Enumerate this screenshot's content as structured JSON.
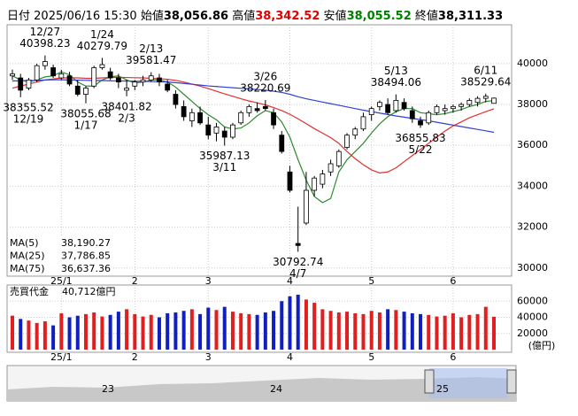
{
  "header": {
    "date_label": "日付",
    "datetime": "2025/06/16 15:30",
    "open_label": "始値",
    "open": "38,056.86",
    "high_label": "高値",
    "high": "38,342.52",
    "low_label": "安値",
    "low": "38,055.52",
    "close_label": "終値",
    "close": "38,311.33"
  },
  "chart_data": {
    "type": "candlestick",
    "categories": [
      null,
      null,
      null,
      null,
      null,
      null,
      "25/1",
      null,
      null,
      null,
      null,
      null,
      null,
      null,
      null,
      "2",
      null,
      null,
      null,
      null,
      null,
      null,
      null,
      null,
      "3",
      null,
      null,
      null,
      null,
      null,
      null,
      null,
      null,
      null,
      "4",
      null,
      null,
      null,
      null,
      null,
      null,
      null,
      null,
      null,
      "5",
      null,
      null,
      null,
      null,
      null,
      null,
      null,
      null,
      null,
      "6",
      null,
      null,
      null,
      null,
      null
    ],
    "ohlc": [
      [
        39400,
        39700,
        39200,
        39500
      ],
      [
        39300,
        39500,
        38355.52,
        38700
      ],
      [
        38800,
        39300,
        38700,
        39200
      ],
      [
        39200,
        40000,
        39100,
        39900
      ],
      [
        39900,
        40398.23,
        39700,
        40100
      ],
      [
        39800,
        39950,
        39300,
        39400
      ],
      [
        39300,
        39700,
        39200,
        39500
      ],
      [
        39400,
        39600,
        38900,
        39000
      ],
      [
        38900,
        39200,
        38400,
        38500
      ],
      [
        38500,
        38900,
        38055.68,
        38800
      ],
      [
        38900,
        39900,
        38800,
        39800
      ],
      [
        39800,
        40279.79,
        39700,
        39950
      ],
      [
        39600,
        39800,
        39200,
        39300
      ],
      [
        39300,
        39500,
        38800,
        39100
      ],
      [
        38700,
        39200,
        38401.82,
        38800
      ],
      [
        38900,
        39200,
        38700,
        39100
      ],
      [
        39100,
        39400,
        38900,
        39200
      ],
      [
        39200,
        39581.47,
        39100,
        39400
      ],
      [
        39300,
        39500,
        38900,
        39100
      ],
      [
        39000,
        39200,
        38600,
        38700
      ],
      [
        38500,
        38700,
        37800,
        38000
      ],
      [
        37900,
        38200,
        37200,
        37400
      ],
      [
        37200,
        37800,
        36900,
        37600
      ],
      [
        37600,
        37900,
        37000,
        37100
      ],
      [
        37000,
        37400,
        36300,
        36500
      ],
      [
        36600,
        37100,
        36200,
        36900
      ],
      [
        36700,
        36900,
        35987.13,
        36400
      ],
      [
        36400,
        37100,
        36300,
        37000
      ],
      [
        37100,
        37700,
        37000,
        37600
      ],
      [
        37600,
        38000,
        37400,
        37900
      ],
      [
        37800,
        38100,
        37600,
        37700
      ],
      [
        37900,
        38220.69,
        37700,
        37800
      ],
      [
        37600,
        37800,
        36800,
        37000
      ],
      [
        36500,
        36700,
        35600,
        35700
      ],
      [
        34700,
        35000,
        33700,
        33800
      ],
      [
        31200,
        33000,
        30792.74,
        31100
      ],
      [
        32200,
        34700,
        32100,
        33800
      ],
      [
        33800,
        34500,
        33500,
        34400
      ],
      [
        34100,
        34800,
        33900,
        34600
      ],
      [
        34700,
        35300,
        34500,
        35100
      ],
      [
        35000,
        35800,
        34900,
        35700
      ],
      [
        35900,
        36600,
        35800,
        36500
      ],
      [
        36500,
        36900,
        36300,
        36800
      ],
      [
        36800,
        37600,
        36700,
        37400
      ],
      [
        37500,
        37900,
        37200,
        37800
      ],
      [
        37900,
        38200,
        37700,
        38100
      ],
      [
        38000,
        38300,
        37500,
        37600
      ],
      [
        37700,
        38494.06,
        37600,
        38200
      ],
      [
        38100,
        38300,
        37700,
        37800
      ],
      [
        37700,
        37900,
        37100,
        37300
      ],
      [
        37200,
        37400,
        36855.83,
        37000
      ],
      [
        37100,
        37700,
        37000,
        37600
      ],
      [
        37600,
        38000,
        37500,
        37900
      ],
      [
        37700,
        38000,
        37500,
        37800
      ],
      [
        37800,
        38000,
        37600,
        37900
      ],
      [
        37900,
        38100,
        37700,
        38000
      ],
      [
        38000,
        38300,
        37900,
        38200
      ],
      [
        38100,
        38400,
        37900,
        38300
      ],
      [
        38300,
        38529.64,
        38100,
        38400
      ],
      [
        38056.86,
        38342.52,
        38055.52,
        38311.33
      ]
    ],
    "up_color": "#ffffff",
    "down_color": "#000000",
    "annotations": [
      {
        "date": "12/27",
        "value": 40398.23
      },
      {
        "date": "12/19",
        "value": 38355.52
      },
      {
        "date": "1/24",
        "value": 40279.79
      },
      {
        "date": "1/17",
        "value": 38055.68
      },
      {
        "date": "2/13",
        "value": 39581.47
      },
      {
        "date": "2/3",
        "value": 38401.82
      },
      {
        "date": "3/26",
        "value": 38220.69
      },
      {
        "date": "3/11",
        "value": 35987.13
      },
      {
        "date": "4/7",
        "value": 30792.74
      },
      {
        "date": "5/13",
        "value": 38494.06
      },
      {
        "date": "5/22",
        "value": 36855.83
      },
      {
        "date": "6/11",
        "value": 38529.64
      }
    ],
    "series": [
      {
        "name": "MA(5)",
        "color": "#2e8b2e",
        "value_labels": "38,190.27",
        "values": [
          39400,
          39200,
          39100,
          39200,
          39350,
          39400,
          39600,
          39450,
          39100,
          38900,
          38900,
          39200,
          39350,
          39400,
          39200,
          39050,
          39100,
          39200,
          39200,
          39100,
          38850,
          38500,
          38150,
          37800,
          37500,
          37250,
          36900,
          36800,
          36850,
          37100,
          37450,
          37700,
          37600,
          37150,
          36400,
          35300,
          34300,
          33500,
          33200,
          33400,
          34700,
          35300,
          35700,
          36100,
          36600,
          37050,
          37400,
          37650,
          37800,
          37800,
          37600,
          37550,
          37500,
          37550,
          37650,
          37750,
          37900,
          38000,
          38150,
          38190.27
        ]
      },
      {
        "name": "MA(25)",
        "color": "#e03030",
        "value_labels": "37,786.85",
        "values": [
          38800,
          38900,
          39000,
          39100,
          39200,
          39250,
          39300,
          39300,
          39300,
          39280,
          39280,
          39300,
          39320,
          39330,
          39320,
          39310,
          39300,
          39280,
          39260,
          39230,
          39180,
          39100,
          39000,
          38900,
          38780,
          38650,
          38520,
          38400,
          38280,
          38170,
          38080,
          37980,
          37850,
          37700,
          37520,
          37300,
          37060,
          36820,
          36600,
          36380,
          36100,
          35700,
          35350,
          35050,
          34800,
          34650,
          34700,
          34900,
          35200,
          35500,
          35800,
          36100,
          36400,
          36700,
          36950,
          37150,
          37350,
          37500,
          37650,
          37786.85
        ]
      },
      {
        "name": "MA(75)",
        "color": "#3040d0",
        "value_labels": "36,637.36",
        "values": [
          39150,
          39160,
          39170,
          39180,
          39200,
          39210,
          39210,
          39200,
          39190,
          39180,
          39170,
          39170,
          39160,
          39150,
          39150,
          39140,
          39130,
          39120,
          39110,
          39100,
          39070,
          39030,
          38990,
          38950,
          38910,
          38880,
          38850,
          38820,
          38790,
          38760,
          38730,
          38700,
          38650,
          38590,
          38500,
          38380,
          38280,
          38200,
          38120,
          38040,
          37960,
          37880,
          37800,
          37720,
          37650,
          37580,
          37510,
          37440,
          37380,
          37320,
          37260,
          37200,
          37130,
          37060,
          36990,
          36920,
          36850,
          36780,
          36710,
          36637.36
        ]
      }
    ],
    "ylim": [
      29600,
      41900
    ],
    "yticks": [
      30000,
      32000,
      34000,
      36000,
      38000,
      40000
    ],
    "grid": true,
    "volume": {
      "label": "売買代金",
      "last_label": "40,712億円",
      "unit": "(億円)",
      "up_color": "#e02020",
      "down_color": "#1020c0",
      "values": [
        42000,
        38000,
        36000,
        33000,
        35000,
        30000,
        45000,
        40000,
        42000,
        44000,
        46000,
        41000,
        43000,
        47000,
        50000,
        44000,
        41000,
        43000,
        40000,
        45000,
        46000,
        48000,
        50000,
        44000,
        52000,
        49000,
        53000,
        47000,
        45000,
        44000,
        43000,
        46000,
        48000,
        60000,
        66000,
        68000,
        62000,
        58000,
        50000,
        48000,
        46000,
        47000,
        45000,
        44000,
        48000,
        46000,
        50000,
        49000,
        47000,
        45000,
        44000,
        43000,
        41000,
        42000,
        45000,
        40000,
        43000,
        44000,
        53000,
        40712
      ],
      "ylim": [
        0,
        80000
      ],
      "yticks": [
        20000,
        40000,
        60000
      ]
    }
  },
  "navigator": {
    "labels": [
      "23",
      "24",
      "25"
    ]
  }
}
